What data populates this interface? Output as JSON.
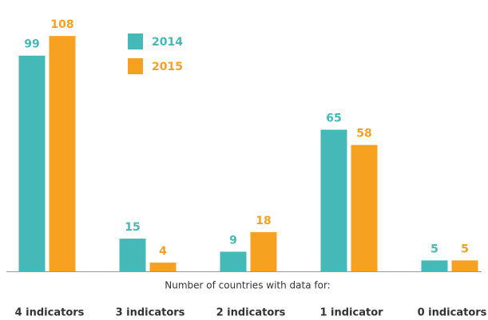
{
  "chart_data": {
    "type": "bar",
    "x_label": "Number of countries with data for:",
    "categories": [
      "4 indicators",
      "3 indicators",
      "2 indicators",
      "1 indicator",
      "0 indicators"
    ],
    "series": [
      {
        "name": "2014",
        "color": "#45b8b8",
        "values": [
          99,
          15,
          9,
          65,
          5
        ]
      },
      {
        "name": "2015",
        "color": "#f7a120",
        "values": [
          108,
          4,
          18,
          58,
          5
        ]
      }
    ],
    "legend": "top"
  }
}
